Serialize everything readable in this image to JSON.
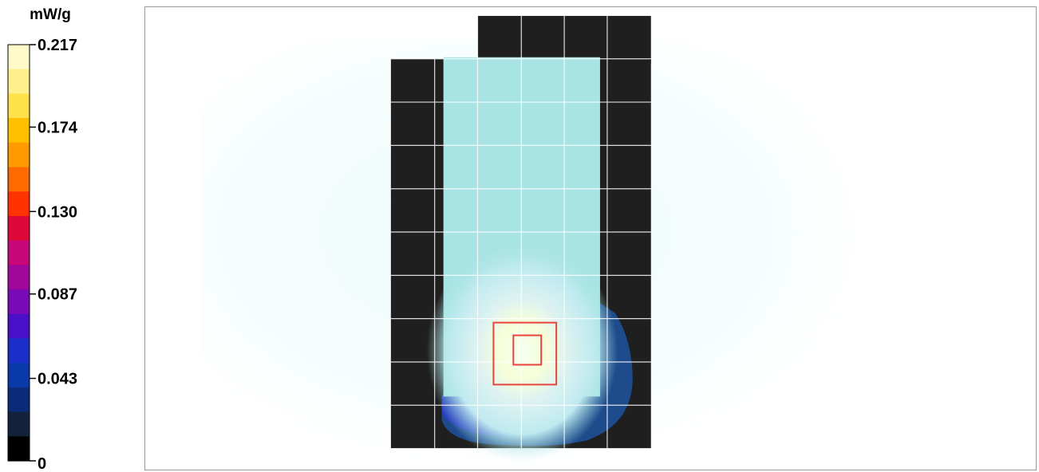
{
  "chart_data": {
    "type": "heatmap",
    "unit": "mW/g",
    "ticks": [
      {
        "value": 0.217,
        "label": "0.217"
      },
      {
        "value": 0.174,
        "label": "0.174"
      },
      {
        "value": 0.13,
        "label": "0.130"
      },
      {
        "value": 0.087,
        "label": "0.087"
      },
      {
        "value": 0.043,
        "label": "0.043"
      },
      {
        "value": 0,
        "label": "0"
      }
    ],
    "vmin": 0,
    "vmax": 0.217,
    "colorscale": [
      "#000000",
      "#14213a",
      "#0a2a7a",
      "#0a3aa8",
      "#1a2ec8",
      "#4a10c8",
      "#7a0ab8",
      "#a0089a",
      "#c8087a",
      "#e00838",
      "#ff3300",
      "#ff6a00",
      "#ff9a00",
      "#ffc000",
      "#ffe24a",
      "#fff08c",
      "#fffac8"
    ],
    "peak_value_approx": 0.217,
    "grid": true,
    "colors": {
      "device": "#1f1f1f",
      "grid_line": "#ffffff",
      "overlay": "#a8e4e4",
      "marker": "#e8443c"
    }
  }
}
